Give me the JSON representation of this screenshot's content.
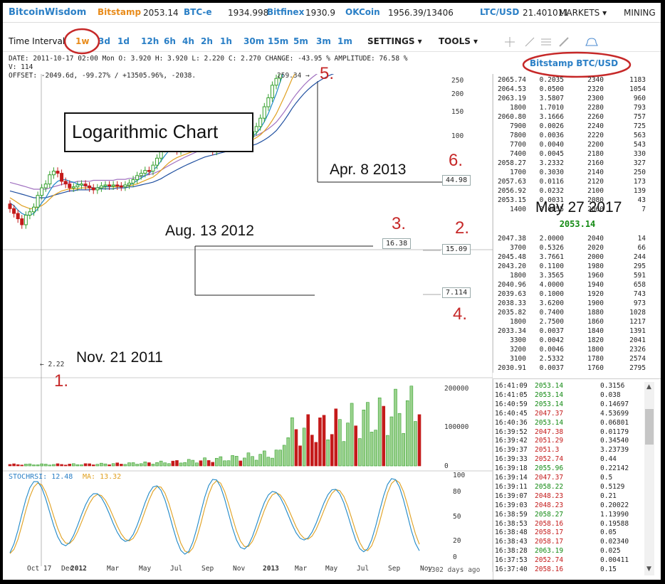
{
  "topbar": {
    "brand": "BitcoinWisdom",
    "exchanges": [
      {
        "name": "Bitstamp",
        "price": "2053.14",
        "color": "#e88b1a"
      },
      {
        "name": "BTC-e",
        "price": "1934.998",
        "color": "#2a7fc6"
      },
      {
        "name": "Bitfinex",
        "price": "1930.9",
        "color": "#2a7fc6"
      },
      {
        "name": "OKCoin",
        "price": "1956.39/13406",
        "color": "#2a7fc6"
      },
      {
        "name": "LTC/USD",
        "price": "21.401011",
        "color": "#2a7fc6"
      }
    ],
    "markets": "MARKETS ▾",
    "mining": "MINING"
  },
  "toolbar": {
    "time_interval_label": "Time Interval",
    "intervals": [
      "1w",
      "3d",
      "1d",
      "12h",
      "6h",
      "4h",
      "2h",
      "1h",
      "30m",
      "15m",
      "5m",
      "3m",
      "1m"
    ],
    "active_interval": "1w",
    "settings": "SETTINGS ▾",
    "tools": "TOOLS ▾",
    "pair_title": "Bitstamp BTC/USD"
  },
  "info": {
    "line1": "DATE: 2011-10-17 02:00 Mon   O: 3.920    H: 3.920    L: 2.220    C: 2.270   CHANGE: -43.95 %    AMPLITUDE: 76.58 %",
    "line2": "V: 114",
    "line3": "OFFSET: -2049.6d, -99.27% / +13505.96%, -2038."
  },
  "annotations": {
    "title": "Logarithmic Chart",
    "n1": "1.",
    "n2": "2.",
    "n3": "3.",
    "n4": "4.",
    "n5": "5.",
    "n6": "6.",
    "d_nov": "Nov. 21 2011",
    "d_aug": "Aug. 13 2012",
    "d_apr": "Apr. 8 2013",
    "d_may": "May 27 2017",
    "price_low": "← 2.22",
    "price_peak": "259.34 →",
    "lvl_16": "16.38",
    "lvl_15": "15.09",
    "lvl_7": "7.114",
    "lvl_44": "44.98",
    "last_price": "2053.14"
  },
  "chart_data": {
    "type": "line",
    "title": "Logarithmic Chart",
    "y_scale": "log",
    "y_ticks": [
      "250",
      "200",
      "150",
      "100",
      "50"
    ],
    "x_ticks": [
      "Oct 17",
      "Dec",
      "2012",
      "Mar",
      "May",
      "Jul",
      "Sep",
      "Nov",
      "2013",
      "Mar",
      "May",
      "Jul",
      "Sep",
      "Nov"
    ],
    "days_ago": "1302 days ago",
    "price_weekly_close": [
      3.2,
      2.9,
      2.6,
      2.3,
      2.8,
      3.0,
      3.3,
      4.2,
      4.9,
      5.3,
      6.4,
      6.9,
      6.6,
      5.6,
      5.3,
      4.9,
      5.0,
      5.2,
      5.3,
      5.1,
      4.9,
      4.7,
      4.9,
      5.1,
      5.2,
      5.1,
      5.2,
      5.1,
      5.0,
      5.2,
      5.4,
      5.8,
      6.3,
      6.6,
      7.0,
      6.9,
      7.8,
      9.0,
      11.0,
      12.2,
      13.3,
      11.7,
      10.5,
      11.1,
      11.5,
      11.9,
      12.0,
      12.3,
      11.9,
      12.4,
      11.6,
      10.4,
      11.2,
      11.3,
      11.9,
      12.4,
      13.4,
      13.4,
      13.0,
      13.5,
      13.8,
      15.5,
      17.2,
      20.4,
      25.8,
      31.0,
      40.1,
      46.1,
      73.0,
      88.1,
      130,
      150,
      120,
      118,
      133,
      130,
      118,
      110,
      100,
      95,
      108,
      92,
      70,
      76,
      90,
      95,
      100,
      95,
      103,
      104,
      110,
      110,
      117,
      122,
      121,
      124,
      131,
      135,
      150,
      170,
      180,
      195,
      210,
      205
    ],
    "ma_fast": [
      3.6,
      3.4,
      3.1,
      2.9,
      2.8,
      2.8,
      2.9,
      3.2,
      3.6,
      4.0,
      4.6,
      5.2,
      5.6,
      5.8,
      5.8,
      5.6,
      5.5,
      5.3,
      5.2,
      5.1,
      5.0,
      4.9,
      4.9,
      5.0,
      5.0,
      5.0,
      5.1,
      5.1,
      5.1,
      5.1,
      5.2,
      5.4,
      5.7,
      6.0,
      6.3,
      6.6,
      7.0,
      7.6,
      8.5,
      9.5,
      10.5,
      11.0,
      11.2,
      11.3,
      11.4,
      11.5,
      11.6,
      11.8,
      11.9,
      12.0,
      11.8,
      11.5,
      11.3,
      11.3,
      11.5,
      11.8,
      12.3,
      12.7,
      13.0,
      13.2,
      13.4,
      14.0,
      15.0,
      16.6,
      19.0,
      22.5,
      27.5,
      33.6,
      43.0,
      54.0,
      70.0,
      88.0,
      100,
      108,
      116,
      122,
      124,
      123,
      120,
      115,
      112,
      108,
      100,
      95,
      93,
      93,
      95,
      96,
      97,
      99,
      102,
      105,
      108,
      111,
      114,
      117,
      121,
      125,
      131,
      140,
      150,
      160,
      172,
      182
    ],
    "ma_mid": [
      4.0,
      3.8,
      3.6,
      3.4,
      3.3,
      3.2,
      3.2,
      3.3,
      3.4,
      3.6,
      3.9,
      4.2,
      4.4,
      4.6,
      4.7,
      4.8,
      4.8,
      4.8,
      4.9,
      4.9,
      4.9,
      4.9,
      4.9,
      4.9,
      5.0,
      5.0,
      5.0,
      5.0,
      5.1,
      5.1,
      5.1,
      5.2,
      5.3,
      5.5,
      5.7,
      5.9,
      6.1,
      6.5,
      7.0,
      7.6,
      8.2,
      8.7,
      9.1,
      9.4,
      9.7,
      10.0,
      10.3,
      10.6,
      10.8,
      11.0,
      11.1,
      11.1,
      11.2,
      11.3,
      11.4,
      11.6,
      11.9,
      12.1,
      12.3,
      12.5,
      12.7,
      13.1,
      13.7,
      14.5,
      15.7,
      17.3,
      19.5,
      22.3,
      26.5,
      31.5,
      38.0,
      46.0,
      53.0,
      59.5,
      66.0,
      72.0,
      77.0,
      80.5,
      83.0,
      84.5,
      86.0,
      86.5,
      86.0,
      85.5,
      85.5,
      86.0,
      87.0,
      88.0,
      89.5,
      91.0,
      93.0,
      95.0,
      97.0,
      99.5,
      102,
      105,
      108,
      111,
      115,
      120,
      126,
      132,
      140,
      147
    ],
    "ma_slow": [
      4.6,
      4.5,
      4.4,
      4.3,
      4.2,
      4.1,
      4.0,
      4.0,
      4.0,
      4.0,
      4.1,
      4.2,
      4.3,
      4.4,
      4.5,
      4.6,
      4.6,
      4.7,
      4.7,
      4.7,
      4.7,
      4.8,
      4.8,
      4.8,
      4.8,
      4.8,
      4.8,
      4.9,
      4.9,
      4.9,
      5.0,
      5.0,
      5.1,
      5.2,
      5.3,
      5.4,
      5.5,
      5.7,
      5.9,
      6.2,
      6.5,
      6.8,
      7.1,
      7.4,
      7.7,
      8.0,
      8.3,
      8.6,
      8.9,
      9.2,
      9.4,
      9.6,
      9.8,
      10.0,
      10.2,
      10.4,
      10.6,
      10.8,
      11.0,
      11.2,
      11.4,
      11.7,
      12.0,
      12.5,
      13.1,
      13.8,
      14.7,
      15.8,
      17.5,
      19.5,
      22.0,
      25.0,
      27.9,
      30.8,
      33.8,
      36.7,
      39.4,
      41.9,
      44.2,
      46.3,
      48.3,
      50.1,
      51.6,
      53.0,
      54.4,
      55.8,
      57.2,
      58.6,
      60.0,
      61.4,
      62.8,
      64.3,
      65.9,
      67.5,
      69.2,
      71.0,
      72.9,
      74.9,
      77.1,
      79.5,
      82.1,
      84.9,
      88.0,
      91.0
    ],
    "volume_ticks": [
      "200000",
      "100000",
      "0"
    ],
    "stochrsi_label": "STOCHRSI: 12.48",
    "ma_label": "MA: 13.32",
    "stoch_ticks": [
      "100",
      "80",
      "50",
      "20",
      "0"
    ]
  },
  "orderbook": {
    "asks": [
      [
        "2065.74",
        "0.2035",
        "2340",
        "1183"
      ],
      [
        "2064.53",
        "0.0500",
        "2320",
        "1054"
      ],
      [
        "2063.19",
        "3.5807",
        "2300",
        "960"
      ],
      [
        "1800",
        "1.7010",
        "2280",
        "793"
      ],
      [
        "2060.80",
        "3.1666",
        "2260",
        "757"
      ],
      [
        "7900",
        "0.0026",
        "2240",
        "725"
      ],
      [
        "7800",
        "0.0036",
        "2220",
        "563"
      ],
      [
        "7700",
        "0.0040",
        "2200",
        "543"
      ],
      [
        "7400",
        "0.0045",
        "2180",
        "330"
      ],
      [
        "2058.27",
        "3.2332",
        "2160",
        "327"
      ],
      [
        "1700",
        "0.3030",
        "2140",
        "250"
      ],
      [
        "2057.63",
        "0.0116",
        "2120",
        "173"
      ],
      [
        "2056.92",
        "0.0232",
        "2100",
        "139"
      ],
      [
        "2053.15",
        "0.0031",
        "2080",
        "43"
      ],
      [
        "1400",
        "0.0055",
        "2060",
        "7"
      ]
    ],
    "bids": [
      [
        "2047.38",
        "2.0000",
        "2040",
        "14"
      ],
      [
        "3700",
        "0.5326",
        "2020",
        "66"
      ],
      [
        "2045.48",
        "3.7661",
        "2000",
        "244"
      ],
      [
        "2043.20",
        "0.1100",
        "1980",
        "295"
      ],
      [
        "1800",
        "3.3565",
        "1960",
        "591"
      ],
      [
        "2040.96",
        "4.0000",
        "1940",
        "658"
      ],
      [
        "2039.63",
        "0.1000",
        "1920",
        "743"
      ],
      [
        "2038.33",
        "3.6200",
        "1900",
        "973"
      ],
      [
        "2035.82",
        "0.7400",
        "1880",
        "1028"
      ],
      [
        "1800",
        "2.7500",
        "1860",
        "1217"
      ],
      [
        "2033.34",
        "0.0037",
        "1840",
        "1391"
      ],
      [
        "3300",
        "0.0042",
        "1820",
        "2041"
      ],
      [
        "3200",
        "0.0046",
        "1800",
        "2326"
      ],
      [
        "3100",
        "2.5332",
        "1780",
        "2574"
      ],
      [
        "2030.91",
        "0.0037",
        "1760",
        "2795"
      ]
    ]
  },
  "trades": [
    [
      "16:41:09",
      "2053.14",
      "0.3156",
      "buy"
    ],
    [
      "16:41:05",
      "2053.14",
      "0.038",
      "buy"
    ],
    [
      "16:40:59",
      "2053.14",
      "0.14697",
      "buy"
    ],
    [
      "16:40:45",
      "2047.37",
      "4.53699",
      "sell"
    ],
    [
      "16:40:36",
      "2053.14",
      "0.06801",
      "buy"
    ],
    [
      "16:39:52",
      "2047.38",
      "0.01179",
      "sell"
    ],
    [
      "16:39:42",
      "2051.29",
      "0.34540",
      "sell"
    ],
    [
      "16:39:37",
      "2051.3",
      "3.23739",
      "sell"
    ],
    [
      "16:39:33",
      "2052.74",
      "0.44",
      "sell"
    ],
    [
      "16:39:18",
      "2055.96",
      "0.22142",
      "buy"
    ],
    [
      "16:39:14",
      "2047.37",
      "0.5",
      "sell"
    ],
    [
      "16:39:11",
      "2058.22",
      "0.5129",
      "buy"
    ],
    [
      "16:39:07",
      "2048.23",
      "0.21",
      "sell"
    ],
    [
      "16:39:03",
      "2048.23",
      "0.20022",
      "sell"
    ],
    [
      "16:38:59",
      "2058.27",
      "1.13990",
      "buy"
    ],
    [
      "16:38:53",
      "2058.16",
      "0.19588",
      "sell"
    ],
    [
      "16:38:48",
      "2058.17",
      "0.05",
      "sell"
    ],
    [
      "16:38:43",
      "2058.17",
      "0.02340",
      "sell"
    ],
    [
      "16:38:28",
      "2063.19",
      "0.025",
      "buy"
    ],
    [
      "16:37:53",
      "2052.74",
      "0.00411",
      "sell"
    ],
    [
      "16:37:40",
      "2058.16",
      "0.15",
      "sell"
    ]
  ],
  "colors": {
    "up": "#34a02c",
    "down": "#c41a1a",
    "ma_fast": "#1e88c8",
    "ma_mid": "#e0a020",
    "ma_slow": "#1f4fa0",
    "ma_violet": "#a070c0",
    "red_ann": "#c62828"
  }
}
